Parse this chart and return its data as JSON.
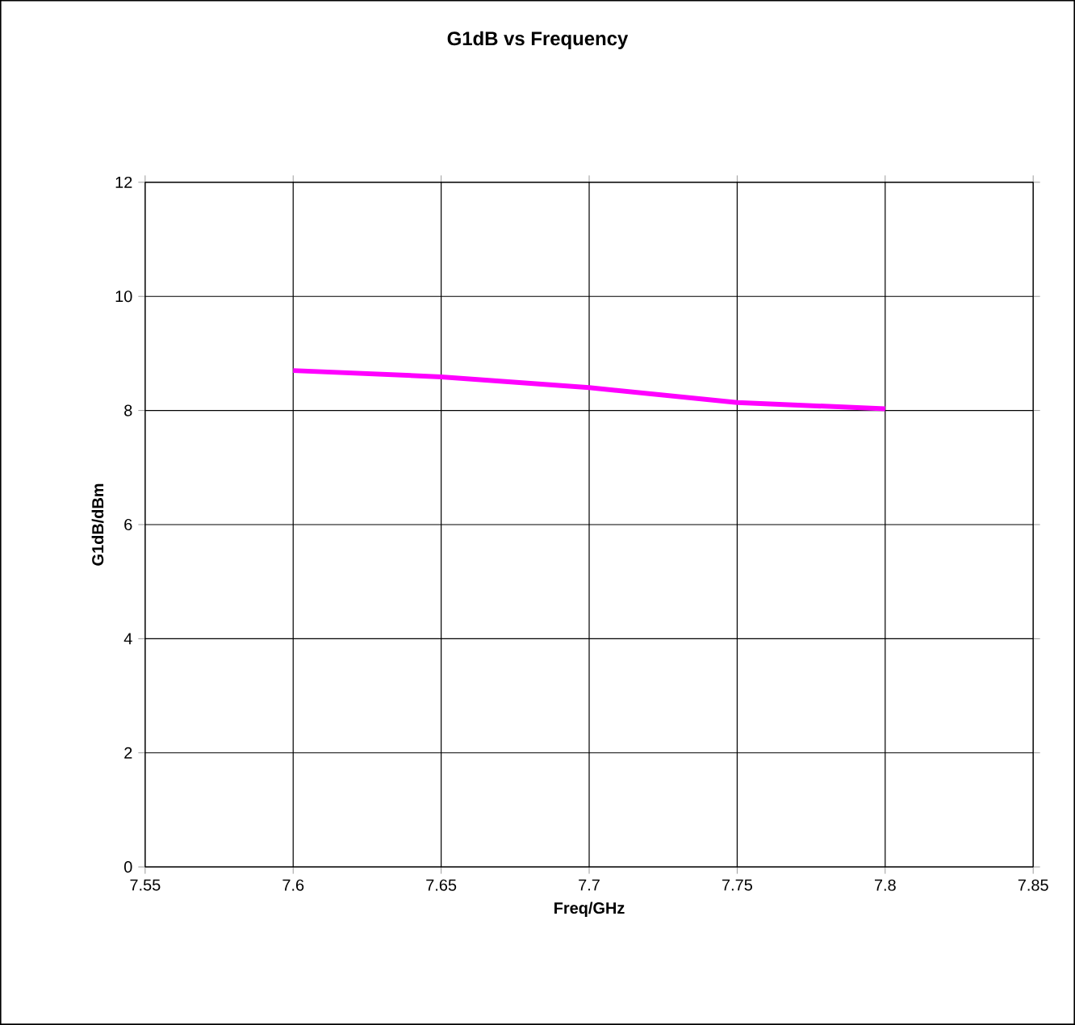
{
  "chart_data": {
    "type": "line",
    "title": "G1dB vs Frequency",
    "xlabel": "Freq/GHz",
    "ylabel": "G1dB/dBm",
    "x": [
      7.6,
      7.65,
      7.7,
      7.75,
      7.8
    ],
    "series": [
      {
        "color": "#ff00ff",
        "values": [
          8.7,
          8.59,
          8.4,
          8.14,
          8.03
        ]
      }
    ],
    "xlim": [
      7.55,
      7.85
    ],
    "xticks": [
      7.55,
      7.6,
      7.65,
      7.7,
      7.75,
      7.8,
      7.85
    ],
    "ylim": [
      0,
      12
    ],
    "yticks": [
      0,
      2,
      4,
      6,
      8,
      10,
      12
    ],
    "grid": true,
    "marker": "none",
    "line_style": "solid"
  }
}
